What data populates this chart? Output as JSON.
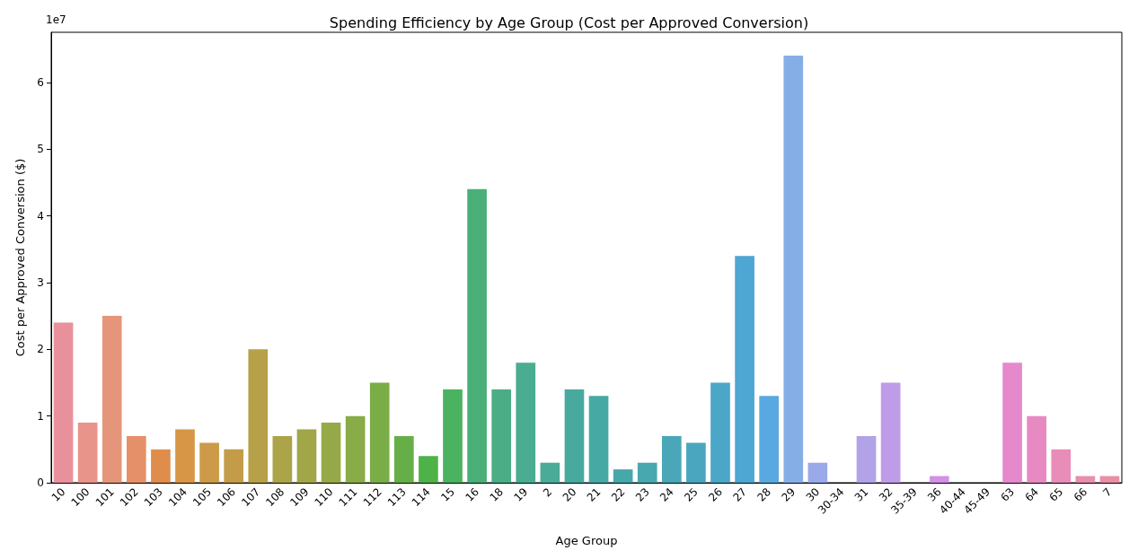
{
  "chart_data": {
    "type": "bar",
    "title": "Spending Efficiency by Age Group (Cost per Approved Conversion)",
    "xlabel": "Age Group",
    "ylabel": "Cost per Approved Conversion ($)",
    "categories": [
      "10",
      "100",
      "101",
      "102",
      "103",
      "104",
      "105",
      "106",
      "107",
      "108",
      "109",
      "110",
      "111",
      "112",
      "113",
      "114",
      "15",
      "16",
      "18",
      "19",
      "2",
      "20",
      "21",
      "22",
      "23",
      "24",
      "25",
      "26",
      "27",
      "28",
      "29",
      "30",
      "30-34",
      "31",
      "32",
      "35-39",
      "36",
      "40-44",
      "45-49",
      "63",
      "64",
      "65",
      "66",
      "7"
    ],
    "values": [
      2.4,
      0.9,
      2.5,
      0.7,
      0.5,
      0.8,
      0.6,
      0.5,
      2.0,
      0.7,
      0.8,
      0.9,
      1.0,
      1.5,
      0.7,
      0.4,
      1.4,
      4.4,
      1.4,
      1.8,
      0.3,
      1.4,
      1.3,
      0.2,
      0.3,
      0.7,
      0.6,
      1.5,
      3.4,
      1.3,
      6.4,
      0.3,
      0,
      0.7,
      1.5,
      0,
      0.1,
      0,
      0,
      1.8,
      1.0,
      0.5,
      0.1,
      0.1
    ],
    "colors": [
      "#e8919c",
      "#e8948a",
      "#e5967a",
      "#e59068",
      "#e08d4c",
      "#d79646",
      "#cc9a48",
      "#c29c48",
      "#b7a148",
      "#aca448",
      "#a1a648",
      "#96a948",
      "#89ab48",
      "#7aad48",
      "#66af48",
      "#4fb248",
      "#4ab260",
      "#4aaf78",
      "#4aad86",
      "#4aac90",
      "#49ab98",
      "#48aa9e",
      "#47a9a4",
      "#47a8aa",
      "#48a8b0",
      "#49a7b7",
      "#4aa6be",
      "#4ba6c7",
      "#4ea6d3",
      "#5aa8e0",
      "#85aee6",
      "#9aaae8",
      "#a8a6e8",
      "#b2a2e8",
      "#bf9ce8",
      "#cb96e8",
      "#d490e6",
      "#dc8ae0",
      "#e288d8",
      "#e688cc",
      "#e88ac2",
      "#e88cb8",
      "#e88eae",
      "#e890a6"
    ],
    "ylim": [
      0,
      6.75
    ],
    "yticks": [
      0,
      1,
      2,
      3,
      4,
      5,
      6
    ],
    "annotations": [
      "1e7"
    ],
    "grid": false
  }
}
